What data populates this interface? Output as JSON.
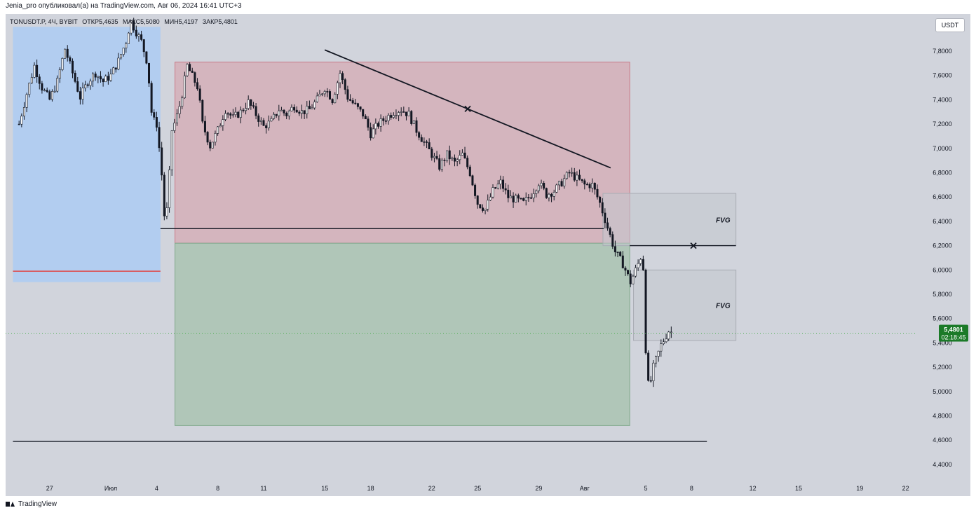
{
  "header_text": "Jenia_pro опубликовал(а) на TradingView.com, Авг 06, 2024 16:41 UTC+3",
  "legend": {
    "symbol": "TONUSDT.P, 4Ч, BYBIT",
    "open": "ОТКР5,4635",
    "high": "МАКС5,5080",
    "low": "МИН5,4197",
    "close": "ЗАКР5,4801"
  },
  "currency_button": "USDT",
  "footer_brand": "TradingView",
  "colors": {
    "background": "#d1d4dc",
    "candle": "#131722",
    "blue_zone": "#b2cdf0",
    "red_zone": "#d4b5be",
    "green_zone": "#b0c6b8",
    "fvg_zone": "#c3c6ce",
    "price_label": "#1b7a28"
  },
  "chart_data": {
    "type": "candlestick",
    "symbol": "TONUSDT.P",
    "timeframe": "4Ч",
    "exchange": "BYBIT",
    "ylim": [
      4.35,
      8.0
    ],
    "y_ticks": [
      "4,4000",
      "4,6000",
      "4,8000",
      "5,0000",
      "5,2000",
      "5,4000",
      "5,6000",
      "5,8000",
      "6,0000",
      "6,2000",
      "6,4000",
      "6,6000",
      "6,8000",
      "7,0000",
      "7,2000",
      "7,4000",
      "7,6000",
      "7,8000"
    ],
    "x_ticks": [
      {
        "label": "27",
        "day": -4
      },
      {
        "label": "Июл",
        "day": 0
      },
      {
        "label": "4",
        "day": 3
      },
      {
        "label": "8",
        "day": 7
      },
      {
        "label": "11",
        "day": 10
      },
      {
        "label": "15",
        "day": 14
      },
      {
        "label": "18",
        "day": 17
      },
      {
        "label": "22",
        "day": 21
      },
      {
        "label": "25",
        "day": 24
      },
      {
        "label": "29",
        "day": 28
      },
      {
        "label": "Авг",
        "day": 31
      },
      {
        "label": "5",
        "day": 35
      },
      {
        "label": "8",
        "day": 38
      },
      {
        "label": "12",
        "day": 42
      },
      {
        "label": "15",
        "day": 45
      },
      {
        "label": "19",
        "day": 49
      },
      {
        "label": "22",
        "day": 52
      }
    ],
    "close_path": [
      [
        -6.0,
        7.2
      ],
      [
        -5.5,
        7.45
      ],
      [
        -5.0,
        7.68
      ],
      [
        -4.5,
        7.5
      ],
      [
        -4.0,
        7.4
      ],
      [
        -3.5,
        7.55
      ],
      [
        -3.0,
        7.82
      ],
      [
        -2.5,
        7.62
      ],
      [
        -2.0,
        7.42
      ],
      [
        -1.5,
        7.55
      ],
      [
        -1.0,
        7.62
      ],
      [
        -0.5,
        7.55
      ],
      [
        0.0,
        7.6
      ],
      [
        0.5,
        7.72
      ],
      [
        1.0,
        7.88
      ],
      [
        1.3,
        8.05
      ],
      [
        1.7,
        7.95
      ],
      [
        2.0,
        7.88
      ],
      [
        2.4,
        7.7
      ],
      [
        2.7,
        7.25
      ],
      [
        3.0,
        7.2
      ],
      [
        3.3,
        6.85
      ],
      [
        3.5,
        6.45
      ],
      [
        3.7,
        6.5
      ],
      [
        4.0,
        7.15
      ],
      [
        4.3,
        7.25
      ],
      [
        4.6,
        7.4
      ],
      [
        5.0,
        7.68
      ],
      [
        5.3,
        7.6
      ],
      [
        5.7,
        7.5
      ],
      [
        6.0,
        7.2
      ],
      [
        6.5,
        7.02
      ],
      [
        7.0,
        7.15
      ],
      [
        7.5,
        7.32
      ],
      [
        8.0,
        7.25
      ],
      [
        8.5,
        7.3
      ],
      [
        9.0,
        7.38
      ],
      [
        9.5,
        7.28
      ],
      [
        10.0,
        7.18
      ],
      [
        10.5,
        7.22
      ],
      [
        11.0,
        7.32
      ],
      [
        11.5,
        7.28
      ],
      [
        12.0,
        7.35
      ],
      [
        12.5,
        7.3
      ],
      [
        13.0,
        7.32
      ],
      [
        13.5,
        7.4
      ],
      [
        14.0,
        7.5
      ],
      [
        14.5,
        7.4
      ],
      [
        15.0,
        7.62
      ],
      [
        15.5,
        7.42
      ],
      [
        16.0,
        7.35
      ],
      [
        16.5,
        7.28
      ],
      [
        17.0,
        7.12
      ],
      [
        17.5,
        7.2
      ],
      [
        18.0,
        7.25
      ],
      [
        18.5,
        7.3
      ],
      [
        19.0,
        7.32
      ],
      [
        19.5,
        7.28
      ],
      [
        20.0,
        7.15
      ],
      [
        20.5,
        7.05
      ],
      [
        21.0,
        6.95
      ],
      [
        21.5,
        6.85
      ],
      [
        22.0,
        6.95
      ],
      [
        22.5,
        6.88
      ],
      [
        23.0,
        6.95
      ],
      [
        23.5,
        6.8
      ],
      [
        24.0,
        6.55
      ],
      [
        24.5,
        6.5
      ],
      [
        25.0,
        6.65
      ],
      [
        25.5,
        6.72
      ],
      [
        26.0,
        6.6
      ],
      [
        26.5,
        6.58
      ],
      [
        27.0,
        6.55
      ],
      [
        27.5,
        6.62
      ],
      [
        28.0,
        6.72
      ],
      [
        28.5,
        6.62
      ],
      [
        29.0,
        6.65
      ],
      [
        29.5,
        6.72
      ],
      [
        30.0,
        6.8
      ],
      [
        30.5,
        6.75
      ],
      [
        31.0,
        6.7
      ],
      [
        31.5,
        6.7
      ],
      [
        32.0,
        6.55
      ],
      [
        32.5,
        6.35
      ],
      [
        33.0,
        6.15
      ],
      [
        33.5,
        6.05
      ],
      [
        34.0,
        5.9
      ],
      [
        34.5,
        6.05
      ],
      [
        34.8,
        6.15
      ],
      [
        35.0,
        5.35
      ],
      [
        35.2,
        5.0
      ],
      [
        35.5,
        5.2
      ],
      [
        36.0,
        5.38
      ],
      [
        36.5,
        5.5
      ],
      [
        36.8,
        5.48
      ]
    ],
    "last_price": "5,4801",
    "countdown": "02:18:45",
    "zones": [
      {
        "name": "blue-zone",
        "x": [
          -6.4,
          3.25
        ],
        "y": [
          5.9,
          8.0
        ]
      },
      {
        "name": "red-zone",
        "x": [
          4.2,
          33.95
        ],
        "y": [
          6.22,
          7.71
        ]
      },
      {
        "name": "green-zone",
        "x": [
          4.2,
          33.95
        ],
        "y": [
          4.72,
          6.22
        ]
      },
      {
        "name": "fvg-zone-upper",
        "x": [
          32.2,
          40.9
        ],
        "y": [
          6.2,
          6.63
        ],
        "label": "FVG"
      },
      {
        "name": "fvg-zone-lower",
        "x": [
          34.2,
          40.9
        ],
        "y": [
          5.42,
          6.0
        ],
        "label": "FVG"
      }
    ],
    "lines": [
      {
        "name": "red-level-line",
        "x": [
          -6.4,
          3.25
        ],
        "y": [
          5.99,
          5.99
        ]
      },
      {
        "name": "trendline",
        "x": [
          14.0,
          32.7
        ],
        "y": [
          7.81,
          6.84
        ],
        "marker_at": 0.5
      },
      {
        "name": "support-line",
        "x": [
          3.25,
          32.25
        ],
        "y": [
          6.34,
          6.34
        ]
      },
      {
        "name": "fvg-level-line",
        "x": [
          33.95,
          40.9
        ],
        "y": [
          6.2,
          6.2
        ],
        "marker_at": 0.6
      },
      {
        "name": "bottom-level-line",
        "x": [
          -6.4,
          39.0
        ],
        "y": [
          4.59,
          4.59
        ]
      }
    ]
  }
}
